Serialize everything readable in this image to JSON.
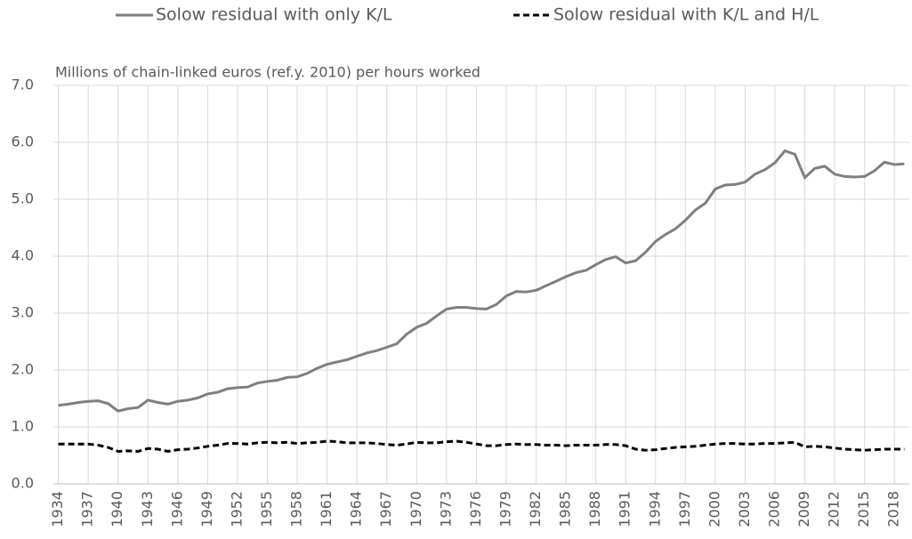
{
  "chart_data": {
    "type": "line",
    "y_axis_label": "Millions of chain-linked euros (ref.y. 2010) per hours worked",
    "x": [
      1934,
      1935,
      1936,
      1937,
      1938,
      1939,
      1940,
      1941,
      1942,
      1943,
      1944,
      1945,
      1946,
      1947,
      1948,
      1949,
      1950,
      1951,
      1952,
      1953,
      1954,
      1955,
      1956,
      1957,
      1958,
      1959,
      1960,
      1961,
      1962,
      1963,
      1964,
      1965,
      1966,
      1967,
      1968,
      1969,
      1970,
      1971,
      1972,
      1973,
      1974,
      1975,
      1976,
      1977,
      1978,
      1979,
      1980,
      1981,
      1982,
      1983,
      1984,
      1985,
      1986,
      1987,
      1988,
      1989,
      1990,
      1991,
      1992,
      1993,
      1994,
      1995,
      1996,
      1997,
      1998,
      1999,
      2000,
      2001,
      2002,
      2003,
      2004,
      2005,
      2006,
      2007,
      2008,
      2009,
      2010,
      2011,
      2012,
      2013,
      2014,
      2015,
      2016,
      2017,
      2018,
      2019
    ],
    "series": [
      {
        "name": "Solow residual with only K/L",
        "color": "#7f7f7f",
        "dash": "solid",
        "values": [
          1.38,
          1.4,
          1.43,
          1.45,
          1.46,
          1.41,
          1.28,
          1.32,
          1.34,
          1.47,
          1.43,
          1.4,
          1.45,
          1.47,
          1.51,
          1.58,
          1.61,
          1.67,
          1.69,
          1.7,
          1.77,
          1.8,
          1.82,
          1.87,
          1.88,
          1.94,
          2.03,
          2.1,
          2.14,
          2.18,
          2.24,
          2.3,
          2.34,
          2.4,
          2.46,
          2.63,
          2.75,
          2.82,
          2.95,
          3.07,
          3.1,
          3.1,
          3.08,
          3.07,
          3.15,
          3.3,
          3.38,
          3.37,
          3.4,
          3.48,
          3.56,
          3.64,
          3.71,
          3.75,
          3.85,
          3.94,
          3.99,
          3.88,
          3.92,
          4.07,
          4.26,
          4.38,
          4.48,
          4.63,
          4.81,
          4.93,
          5.18,
          5.25,
          5.26,
          5.3,
          5.44,
          5.52,
          5.64,
          5.85,
          5.79,
          5.38,
          5.54,
          5.58,
          5.44,
          5.4,
          5.39,
          5.4,
          5.5,
          5.65,
          5.61,
          5.62
        ]
      },
      {
        "name": "Solow residual with K/L and H/L",
        "color": "#000000",
        "dash": "dashed",
        "values": [
          0.7,
          0.7,
          0.7,
          0.7,
          0.68,
          0.64,
          0.57,
          0.58,
          0.57,
          0.62,
          0.61,
          0.57,
          0.6,
          0.61,
          0.63,
          0.66,
          0.68,
          0.71,
          0.71,
          0.7,
          0.72,
          0.73,
          0.72,
          0.73,
          0.71,
          0.72,
          0.73,
          0.75,
          0.74,
          0.72,
          0.72,
          0.72,
          0.71,
          0.69,
          0.68,
          0.7,
          0.73,
          0.72,
          0.72,
          0.74,
          0.75,
          0.73,
          0.7,
          0.67,
          0.67,
          0.69,
          0.7,
          0.69,
          0.69,
          0.68,
          0.68,
          0.67,
          0.68,
          0.68,
          0.68,
          0.69,
          0.69,
          0.67,
          0.61,
          0.59,
          0.6,
          0.62,
          0.64,
          0.65,
          0.66,
          0.68,
          0.7,
          0.71,
          0.71,
          0.7,
          0.7,
          0.71,
          0.71,
          0.72,
          0.73,
          0.65,
          0.66,
          0.65,
          0.63,
          0.61,
          0.6,
          0.59,
          0.6,
          0.61,
          0.61,
          0.61
        ]
      }
    ],
    "xlim": [
      1933.5,
      2019.5
    ],
    "xticks": [
      1934,
      1937,
      1940,
      1943,
      1946,
      1949,
      1952,
      1955,
      1958,
      1961,
      1964,
      1967,
      1970,
      1973,
      1976,
      1979,
      1982,
      1985,
      1988,
      1991,
      1994,
      1997,
      2000,
      2003,
      2006,
      2009,
      2012,
      2015,
      2018
    ],
    "ylim": [
      0,
      7
    ],
    "yticks": [
      {
        "value": 0,
        "label": "0.0"
      },
      {
        "value": 1,
        "label": "1.0"
      },
      {
        "value": 2,
        "label": "2.0"
      },
      {
        "value": 3,
        "label": "3.0"
      },
      {
        "value": 4,
        "label": "4.0"
      },
      {
        "value": 5,
        "label": "5.0"
      },
      {
        "value": 6,
        "label": "6.0"
      },
      {
        "value": 7,
        "label": "7.0"
      }
    ],
    "grid": true,
    "legend": "top"
  }
}
